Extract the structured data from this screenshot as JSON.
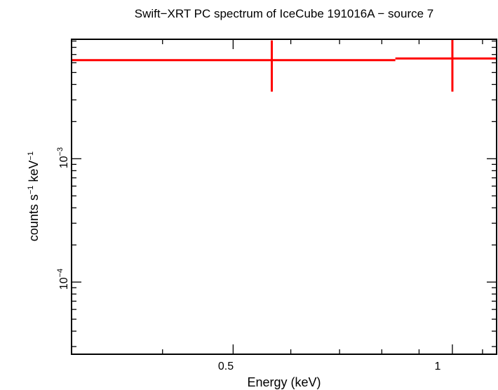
{
  "chart_data": {
    "type": "scatter",
    "title": "Swift−XRT PC spectrum of IceCube 191016A − source 7",
    "xlabel": "Energy (keV)",
    "ylabel": {
      "base": "counts s",
      "exp1": "−1",
      "mid": " keV",
      "exp2": "−1"
    },
    "xscale": "log",
    "yscale": "log",
    "xlim": [
      0.3,
      1.15
    ],
    "ylim": [
      2.6e-05,
      0.0093
    ],
    "x_ticks": [
      {
        "value": 0.5,
        "label": "0.5"
      },
      {
        "value": 1,
        "label": "1"
      }
    ],
    "y_ticks": [
      {
        "value": 0.001,
        "base": "10",
        "exp": "−3"
      },
      {
        "value": 0.0001,
        "base": "10",
        "exp": "−4"
      }
    ],
    "series": [
      {
        "name": "source 7",
        "color": "#ff0000",
        "points": [
          {
            "x": 0.565,
            "xlo": 0.3,
            "xhi": 0.835,
            "y": 0.0063,
            "ylo": 0.0035,
            "yhi": 0.0091
          },
          {
            "x": 1.0,
            "xlo": 0.835,
            "xhi": 1.15,
            "y": 0.0065,
            "ylo": 0.0035,
            "yhi": 0.0095
          }
        ]
      }
    ]
  }
}
